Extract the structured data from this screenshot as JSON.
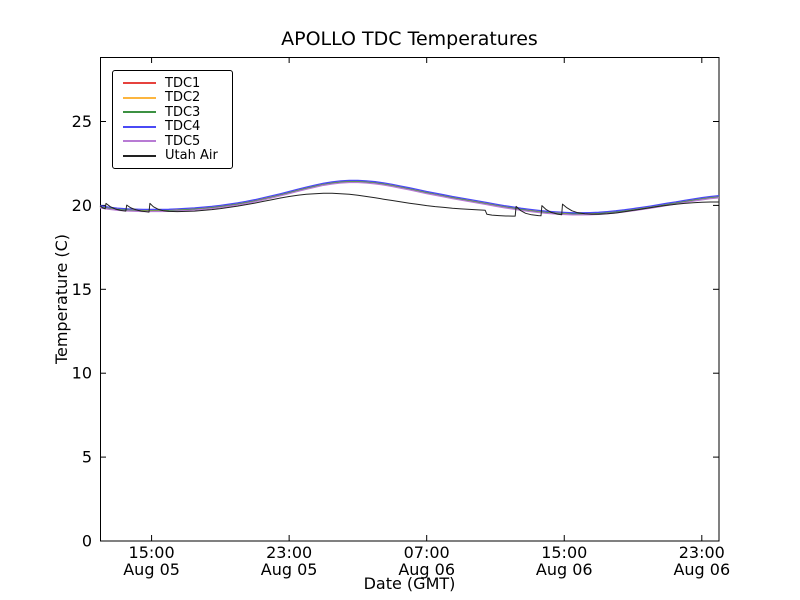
{
  "figure": {
    "background": "#ffffff",
    "frame_color": "#000000"
  },
  "chart_data": {
    "type": "line",
    "title": "APOLLO TDC Temperatures",
    "xlabel": "Date (GMT)",
    "ylabel": "Temperature (C)",
    "ylim": [
      0,
      28.85
    ],
    "x_hours_range": [
      0,
      36
    ],
    "grid": false,
    "legend_position": "upper left",
    "y_ticks": [
      0,
      5,
      10,
      15,
      20,
      25
    ],
    "x_ticks": [
      {
        "hour": 3,
        "time": "15:00",
        "date": "Aug 05"
      },
      {
        "hour": 11,
        "time": "23:00",
        "date": "Aug 05"
      },
      {
        "hour": 19,
        "time": "07:00",
        "date": "Aug 06"
      },
      {
        "hour": 27,
        "time": "15:00",
        "date": "Aug 06"
      },
      {
        "hour": 35,
        "time": "23:00",
        "date": "Aug 06"
      }
    ],
    "series": [
      {
        "name": "TDC1",
        "color": "#e6423d",
        "offset": 0.0,
        "source": "tdc_base_points"
      },
      {
        "name": "TDC2",
        "color": "#fcb53f",
        "offset": 0.025,
        "source": "tdc_base_points"
      },
      {
        "name": "TDC3",
        "color": "#3c9142",
        "offset": -0.025,
        "source": "tdc_base_points"
      },
      {
        "name": "TDC4",
        "color": "#4a4af5",
        "offset": 0.06,
        "source": "tdc_base_points"
      },
      {
        "name": "TDC5",
        "color": "#b87bd4",
        "offset": -0.065,
        "source": "tdc_base_points"
      },
      {
        "name": "Utah Air",
        "color": "#222222",
        "offset": 0.0,
        "source": "utah_points"
      }
    ],
    "tdc_base_points": [
      [
        0,
        19.92
      ],
      [
        0.5,
        19.84
      ],
      [
        1,
        19.78
      ],
      [
        1.5,
        19.74
      ],
      [
        2,
        19.72
      ],
      [
        2.5,
        19.7
      ],
      [
        3,
        19.7
      ],
      [
        3.5,
        19.7
      ],
      [
        4,
        19.71
      ],
      [
        4.5,
        19.73
      ],
      [
        5,
        19.76
      ],
      [
        5.5,
        19.79
      ],
      [
        6,
        19.83
      ],
      [
        6.5,
        19.88
      ],
      [
        7,
        19.94
      ],
      [
        7.5,
        20.01
      ],
      [
        8,
        20.09
      ],
      [
        8.5,
        20.18
      ],
      [
        9,
        20.28
      ],
      [
        9.5,
        20.39
      ],
      [
        10,
        20.51
      ],
      [
        10.5,
        20.64
      ],
      [
        11,
        20.77
      ],
      [
        11.5,
        20.9
      ],
      [
        12,
        21.03
      ],
      [
        12.5,
        21.15
      ],
      [
        13,
        21.26
      ],
      [
        13.5,
        21.34
      ],
      [
        14,
        21.4
      ],
      [
        14.5,
        21.43
      ],
      [
        15,
        21.43
      ],
      [
        15.5,
        21.4
      ],
      [
        16,
        21.35
      ],
      [
        16.5,
        21.28
      ],
      [
        17,
        21.19
      ],
      [
        17.5,
        21.09
      ],
      [
        18,
        20.99
      ],
      [
        18.5,
        20.88
      ],
      [
        19,
        20.77
      ],
      [
        19.5,
        20.67
      ],
      [
        20,
        20.57
      ],
      [
        20.5,
        20.47
      ],
      [
        21,
        20.38
      ],
      [
        21.5,
        20.29
      ],
      [
        22,
        20.2
      ],
      [
        22.5,
        20.11
      ],
      [
        23,
        20.02
      ],
      [
        23.5,
        19.93
      ],
      [
        24,
        19.85
      ],
      [
        24.5,
        19.77
      ],
      [
        25,
        19.7
      ],
      [
        25.5,
        19.64
      ],
      [
        26,
        19.59
      ],
      [
        26.5,
        19.55
      ],
      [
        27,
        19.52
      ],
      [
        27.5,
        19.5
      ],
      [
        28,
        19.5
      ],
      [
        28.5,
        19.51
      ],
      [
        29,
        19.53
      ],
      [
        29.5,
        19.57
      ],
      [
        30,
        19.62
      ],
      [
        30.5,
        19.68
      ],
      [
        31,
        19.75
      ],
      [
        31.5,
        19.82
      ],
      [
        32,
        19.9
      ],
      [
        32.5,
        19.98
      ],
      [
        33,
        20.07
      ],
      [
        33.5,
        20.15
      ],
      [
        34,
        20.24
      ],
      [
        34.5,
        20.32
      ],
      [
        35,
        20.4
      ],
      [
        35.5,
        20.47
      ],
      [
        36,
        20.52
      ]
    ],
    "utah_points": [
      [
        0,
        19.98
      ],
      [
        0.15,
        19.85
      ],
      [
        0.3,
        19.8
      ],
      [
        0.35,
        20.12
      ],
      [
        0.6,
        19.92
      ],
      [
        0.9,
        19.78
      ],
      [
        1.2,
        19.7
      ],
      [
        1.5,
        19.66
      ],
      [
        1.55,
        20.02
      ],
      [
        1.8,
        19.85
      ],
      [
        2.1,
        19.73
      ],
      [
        2.4,
        19.66
      ],
      [
        2.7,
        19.62
      ],
      [
        2.85,
        19.6
      ],
      [
        2.9,
        20.12
      ],
      [
        3.1,
        19.92
      ],
      [
        3.4,
        19.76
      ],
      [
        3.7,
        19.68
      ],
      [
        4.0,
        19.64
      ],
      [
        4.5,
        19.63
      ],
      [
        5,
        19.64
      ],
      [
        5.5,
        19.66
      ],
      [
        6,
        19.7
      ],
      [
        6.5,
        19.75
      ],
      [
        7,
        19.81
      ],
      [
        7.5,
        19.88
      ],
      [
        8,
        19.96
      ],
      [
        8.5,
        20.05
      ],
      [
        9,
        20.14
      ],
      [
        9.5,
        20.24
      ],
      [
        10,
        20.34
      ],
      [
        10.5,
        20.44
      ],
      [
        11,
        20.53
      ],
      [
        11.5,
        20.6
      ],
      [
        12,
        20.66
      ],
      [
        12.5,
        20.7
      ],
      [
        13,
        20.72
      ],
      [
        13.5,
        20.72
      ],
      [
        14,
        20.7
      ],
      [
        14.5,
        20.66
      ],
      [
        15,
        20.6
      ],
      [
        15.5,
        20.53
      ],
      [
        16,
        20.45
      ],
      [
        16.5,
        20.37
      ],
      [
        17,
        20.29
      ],
      [
        17.5,
        20.21
      ],
      [
        18,
        20.13
      ],
      [
        18.5,
        20.06
      ],
      [
        19,
        19.99
      ],
      [
        19.5,
        19.93
      ],
      [
        20,
        19.88
      ],
      [
        20.5,
        19.83
      ],
      [
        21,
        19.79
      ],
      [
        21.5,
        19.76
      ],
      [
        22,
        19.73
      ],
      [
        22.4,
        19.71
      ],
      [
        22.5,
        19.47
      ],
      [
        22.8,
        19.42
      ],
      [
        23.2,
        19.39
      ],
      [
        23.6,
        19.37
      ],
      [
        24.0,
        19.36
      ],
      [
        24.15,
        19.36
      ],
      [
        24.2,
        19.94
      ],
      [
        24.45,
        19.7
      ],
      [
        24.75,
        19.53
      ],
      [
        25.1,
        19.44
      ],
      [
        25.5,
        19.39
      ],
      [
        25.65,
        19.38
      ],
      [
        25.7,
        19.99
      ],
      [
        25.95,
        19.75
      ],
      [
        26.25,
        19.58
      ],
      [
        26.6,
        19.48
      ],
      [
        26.85,
        19.44
      ],
      [
        26.9,
        20.08
      ],
      [
        27.15,
        19.86
      ],
      [
        27.45,
        19.68
      ],
      [
        27.8,
        19.56
      ],
      [
        28.2,
        19.5
      ],
      [
        28.6,
        19.47
      ],
      [
        29,
        19.47
      ],
      [
        29.5,
        19.5
      ],
      [
        30,
        19.55
      ],
      [
        30.5,
        19.62
      ],
      [
        31,
        19.7
      ],
      [
        31.5,
        19.78
      ],
      [
        32,
        19.86
      ],
      [
        32.5,
        19.94
      ],
      [
        33,
        20.01
      ],
      [
        33.5,
        20.07
      ],
      [
        34,
        20.12
      ],
      [
        34.5,
        20.16
      ],
      [
        35,
        20.19
      ],
      [
        35.5,
        20.2
      ],
      [
        36,
        20.2
      ]
    ]
  }
}
